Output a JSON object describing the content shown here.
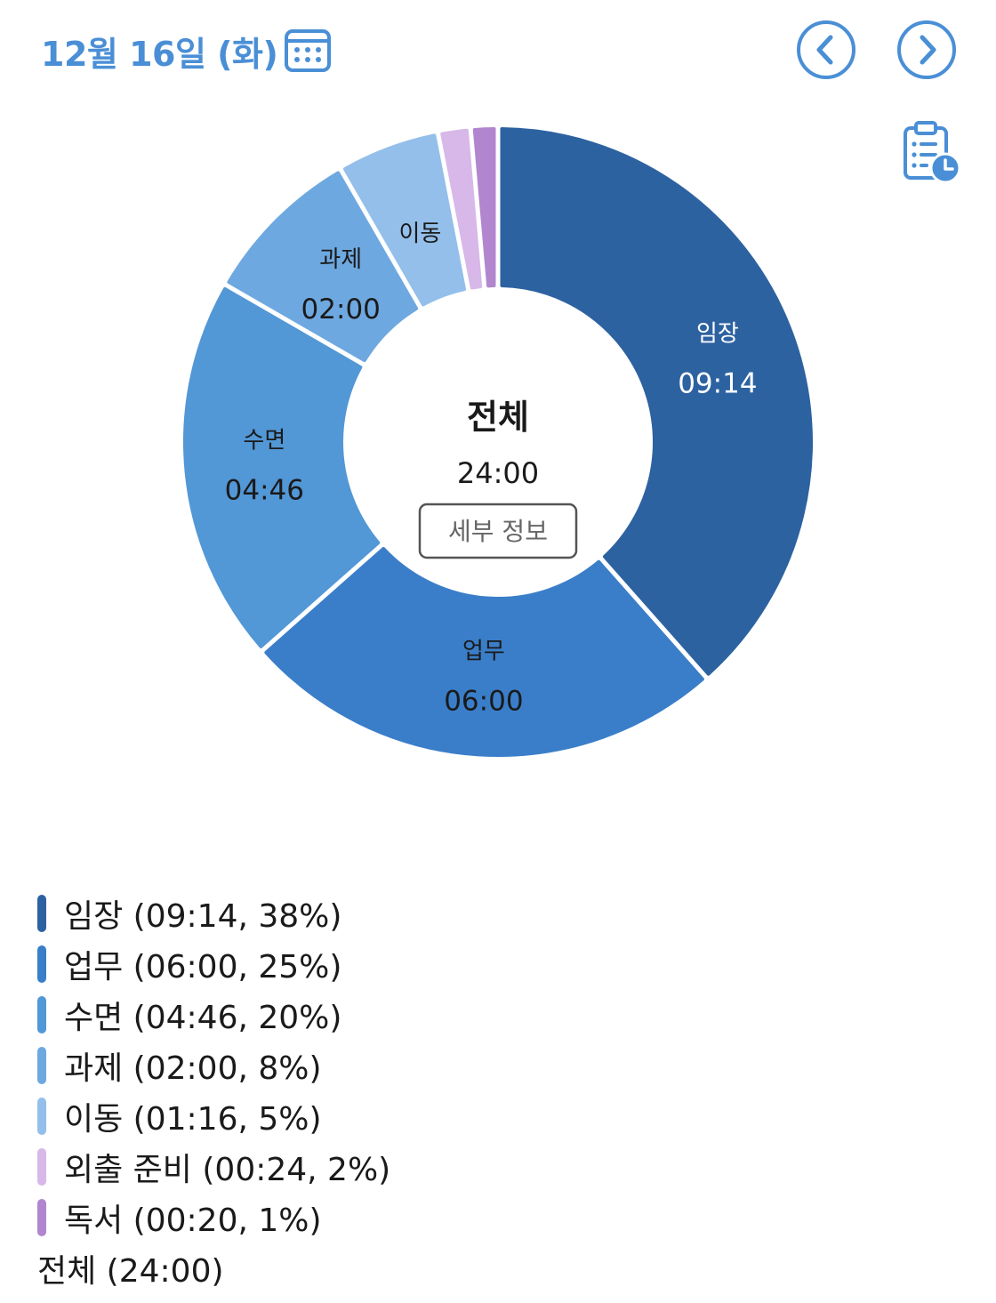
{
  "header": {
    "date": "12월 16일 (화)",
    "date_color": "#4a8fd6",
    "icons": {
      "calendar": "calendar-icon",
      "prev": "chevron-left-icon",
      "next": "chevron-right-icon",
      "history": "clipboard-clock-icon"
    }
  },
  "center": {
    "title": "전체",
    "total": "24:00",
    "detail_button": "세부 정보"
  },
  "chart_data": {
    "type": "pie",
    "donut": true,
    "title": "",
    "unit": "hh:mm",
    "slices": [
      {
        "label": "임장",
        "time": "09:14",
        "minutes": 554,
        "percent": 38,
        "color": "#2d62a1",
        "show_label": true
      },
      {
        "label": "업무",
        "time": "06:00",
        "minutes": 360,
        "percent": 25,
        "color": "#3a7ec9",
        "show_label": true
      },
      {
        "label": "수면",
        "time": "04:46",
        "minutes": 286,
        "percent": 20,
        "color": "#5297d6",
        "show_label": true
      },
      {
        "label": "과제",
        "time": "02:00",
        "minutes": 120,
        "percent": 8,
        "color": "#6ea8e0",
        "show_label": true
      },
      {
        "label": "이동",
        "time": "01:16",
        "minutes": 76,
        "percent": 5,
        "color": "#93bfea",
        "show_label": true,
        "hide_time": true
      },
      {
        "label": "외출 준비",
        "time": "00:24",
        "minutes": 24,
        "percent": 2,
        "color": "#d7b8e8",
        "show_label": false
      },
      {
        "label": "독서",
        "time": "00:20",
        "minutes": 20,
        "percent": 1,
        "color": "#b286cf",
        "show_label": false
      }
    ]
  },
  "legend": {
    "items": [
      "임장 (09:14, 38%)",
      "업무 (06:00, 25%)",
      "수면 (04:46, 20%)",
      "과제 (02:00, 8%)",
      "이동 (01:16, 5%)",
      "외출 준비 (00:24, 2%)",
      "독서 (00:20, 1%)"
    ],
    "total": "전체 (24:00)"
  }
}
